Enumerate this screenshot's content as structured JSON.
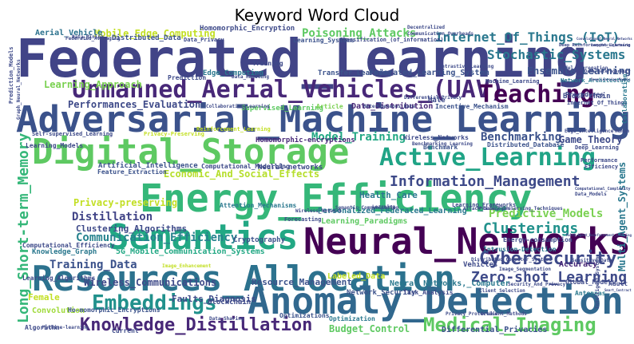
{
  "chart_data": {
    "type": "wordcloud",
    "title": "Keyword Word Cloud",
    "background": "#ffffff",
    "colormap": "viridis",
    "words": [
      {
        "text": "Federated_Learning"
      },
      {
        "text": "Adversarial_Machine_Learning"
      },
      {
        "text": "Unmanned_Aerial_Vehicles_(UAV)"
      },
      {
        "text": "Digital_Storage"
      },
      {
        "text": "Energy_Efficiency"
      },
      {
        "text": "Semantics"
      },
      {
        "text": "Resources_Allocation"
      },
      {
        "text": "Neural_Networks"
      },
      {
        "text": "Anomaly_Detection"
      },
      {
        "text": "Active_Learning"
      },
      {
        "text": "Teaching"
      },
      {
        "text": "Embeddings"
      },
      {
        "text": "Knowledge_Distillation"
      },
      {
        "text": "Medical_Imaging"
      },
      {
        "text": "Cybersecurity"
      },
      {
        "text": "Long_Short-term_Memory"
      },
      {
        "text": "Information_Management"
      },
      {
        "text": "Zero-shot_Learning"
      },
      {
        "text": "Clusterings"
      },
      {
        "text": "Internet_Of_Things_(IoT)"
      },
      {
        "text": "Stochastic_Systems"
      },
      {
        "text": "Poisoning_Attacks"
      },
      {
        "text": "Distillation"
      },
      {
        "text": "Predictive_Models"
      },
      {
        "text": "Communication_Efficiency"
      },
      {
        "text": "Privacy-preserving"
      },
      {
        "text": "Economic_And_Social_Effects"
      },
      {
        "text": "Benchmarking"
      },
      {
        "text": "Ensemble_Learning"
      },
      {
        "text": "Learning_Approach"
      },
      {
        "text": "Performances_Evaluation"
      },
      {
        "text": "Model_Training"
      },
      {
        "text": "Training_Data"
      },
      {
        "text": "Game_Theory"
      },
      {
        "text": "Wireless_Communications"
      },
      {
        "text": "Resource_Management"
      },
      {
        "text": "Clustering_Algorithms"
      },
      {
        "text": "Budget_Control"
      },
      {
        "text": "Mobile_Edge_Computing"
      },
      {
        "text": "Aerial_Vehicle"
      },
      {
        "text": "Health_Care"
      },
      {
        "text": "5G_Mobile_Communication_Systems"
      },
      {
        "text": "Faults_Diagnosis"
      },
      {
        "text": "Female"
      },
      {
        "text": "Convolution"
      },
      {
        "text": "Multi_Agent_Systems"
      },
      {
        "text": "Personalized_Federated_Learning"
      },
      {
        "text": "Learning_Paradigms"
      },
      {
        "text": "Labeled_Data"
      },
      {
        "text": "Knowledge_Graph"
      },
      {
        "text": "Artificial_Intelligence"
      },
      {
        "text": "Homomorphic-encryptions"
      },
      {
        "text": "Federated_Learning_System"
      },
      {
        "text": "Edge_Computing"
      },
      {
        "text": "Transfer_Learning"
      },
      {
        "text": "Homomorphic_Encryption"
      },
      {
        "text": "Distributed_Data"
      },
      {
        "text": "Learning_Systems"
      },
      {
        "text": "Network_Architecture"
      },
      {
        "text": "Data_Distribution"
      },
      {
        "text": "Supervised_Learning"
      },
      {
        "text": "Differential_Privacies"
      },
      {
        "text": "Neural_Networks,_Computer"
      },
      {
        "text": "Network_Security"
      },
      {
        "text": "Task_Analysis"
      },
      {
        "text": "Vehicles"
      },
      {
        "text": "Accuracy"
      },
      {
        "text": "Blockchain"
      },
      {
        "text": "Ho-momorphic_Encryptions"
      },
      {
        "text": "Optimizations"
      },
      {
        "text": "Optimization"
      },
      {
        "text": "Cryptography"
      },
      {
        "text": "Attention_Mechanisms"
      },
      {
        "text": "Neural-networks"
      },
      {
        "text": "Computational_Modelling"
      },
      {
        "text": "Learning_Models"
      },
      {
        "text": "Feature_Extraction"
      },
      {
        "text": "Computational_Efficiency"
      },
      {
        "text": "Intrusion-Detection"
      },
      {
        "text": "Distributed_Database"
      },
      {
        "text": "Wireless_Networks"
      },
      {
        "text": "Energy-consumption"
      },
      {
        "text": "Learning_Frameworks"
      },
      {
        "text": "Learning_Algorithms"
      },
      {
        "text": "Antennas"
      },
      {
        "text": "Global_Models"
      },
      {
        "text": "Adult"
      },
      {
        "text": "Block-chain"
      },
      {
        "text": "Internet_Of_Things"
      },
      {
        "text": "Incentive_Mechanism"
      },
      {
        "text": "Male"
      },
      {
        "text": "Article"
      },
      {
        "text": "Procedures"
      },
      {
        "text": "Collaboration"
      },
      {
        "text": "Prediction"
      },
      {
        "text": "Training"
      },
      {
        "text": "Classification_(of_information)"
      },
      {
        "text": "Data_Privacy"
      },
      {
        "text": "Forecasting"
      },
      {
        "text": "Privacy-Preserving"
      },
      {
        "text": "Machine_Learning"
      },
      {
        "text": "Deep_Learning"
      },
      {
        "text": "Performance"
      },
      {
        "text": "Efficiency"
      },
      {
        "text": "Current"
      },
      {
        "text": "Algorithm"
      },
      {
        "text": "Prediction_Models"
      },
      {
        "text": "Self-supervised_Learning"
      },
      {
        "text": "Graph_Neural_Networks"
      },
      {
        "text": "Privacy-preserving_Techniques"
      },
      {
        "text": "Reinforcement_Learning"
      },
      {
        "text": "Deep_Reinforcement_Learning"
      },
      {
        "text": "Data_Mining"
      },
      {
        "text": "Benchmark"
      },
      {
        "text": "Machine-learning"
      },
      {
        "text": "Federated_Averaging"
      },
      {
        "text": "Computational_Complexity"
      },
      {
        "text": "Semantic_Communication"
      },
      {
        "text": "Intelligent_Systems"
      },
      {
        "text": "Data_Models"
      },
      {
        "text": "Sensitive_Data"
      },
      {
        "text": "Edge_Intelligence"
      },
      {
        "text": "Human"
      },
      {
        "text": "Contrastive_Learning"
      },
      {
        "text": "Communication_Overheads"
      },
      {
        "text": "Deep_Neural_Networks"
      },
      {
        "text": "Convolutional_Neural_Networks"
      },
      {
        "text": "Collaborative_Learning"
      },
      {
        "text": "Heterogeneous_Data"
      },
      {
        "text": "Image_Enhancement"
      },
      {
        "text": "Wireless_Network"
      },
      {
        "text": "Data_Sharing"
      },
      {
        "text": "Image_Segmentation"
      },
      {
        "text": "Privacy_Protection"
      },
      {
        "text": "Differential_Privacy"
      },
      {
        "text": "Attack_Detection"
      },
      {
        "text": "Gradient_Methods"
      },
      {
        "text": "Data_Handling"
      },
      {
        "text": "Deep_Learning_Models"
      },
      {
        "text": "Security_And_Privacy"
      },
      {
        "text": "Smart_Contract"
      },
      {
        "text": "Distributed_Computer_Systems"
      },
      {
        "text": "Multi-Agent_Reinforcement_Learning"
      },
      {
        "text": "Learning"
      },
      {
        "text": "Benchmarking_Learning"
      },
      {
        "text": "Data_Heterogeneity"
      },
      {
        "text": "Decentralized"
      },
      {
        "text": "Model_Aggregation"
      },
      {
        "text": "Client_Selection"
      }
    ]
  }
}
